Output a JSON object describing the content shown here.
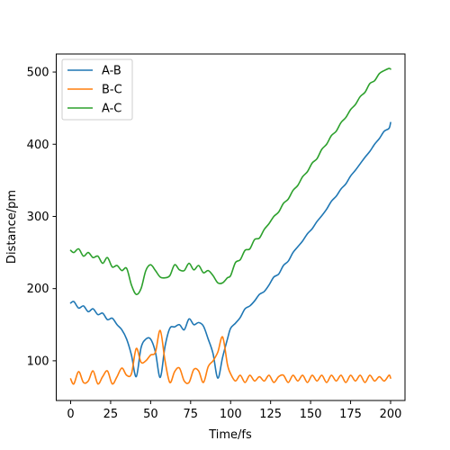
{
  "chart_data": {
    "type": "line",
    "xlabel": "Time/fs",
    "ylabel": "Distance/pm",
    "xlim": [
      -9,
      209
    ],
    "ylim": [
      45,
      525
    ],
    "xticks": [
      0,
      25,
      50,
      75,
      100,
      125,
      150,
      175,
      200
    ],
    "yticks": [
      100,
      200,
      300,
      400,
      500
    ],
    "legend_position": "top-left",
    "grid": false,
    "series": [
      {
        "name": "A-B",
        "color": "#1f77b4",
        "x": [
          0,
          2,
          5,
          8,
          11,
          14,
          17,
          20,
          23,
          26,
          29,
          32,
          35,
          38,
          41,
          44,
          47,
          50,
          53,
          56,
          59,
          62,
          65,
          68,
          71,
          74,
          77,
          80,
          83,
          86,
          89,
          92,
          95,
          98,
          100,
          103,
          106,
          109,
          112,
          115,
          118,
          121,
          124,
          127,
          130,
          133,
          136,
          139,
          142,
          145,
          148,
          151,
          154,
          157,
          160,
          163,
          166,
          169,
          172,
          175,
          178,
          181,
          184,
          187,
          190,
          193,
          196,
          199,
          200
        ],
        "y": [
          180,
          182,
          173,
          176,
          168,
          172,
          164,
          166,
          157,
          159,
          150,
          143,
          130,
          108,
          78,
          118,
          130,
          130,
          112,
          77,
          120,
          145,
          147,
          150,
          143,
          158,
          150,
          153,
          148,
          130,
          110,
          76,
          105,
          130,
          145,
          152,
          160,
          172,
          176,
          183,
          192,
          196,
          205,
          216,
          220,
          232,
          238,
          250,
          258,
          266,
          276,
          283,
          293,
          301,
          310,
          321,
          328,
          338,
          345,
          356,
          364,
          373,
          382,
          390,
          400,
          408,
          418,
          422,
          430
        ]
      },
      {
        "name": "B-C",
        "color": "#ff7f0e",
        "x": [
          0,
          2,
          5,
          8,
          11,
          14,
          17,
          20,
          23,
          26,
          29,
          32,
          35,
          38,
          41,
          44,
          47,
          50,
          53,
          56,
          59,
          62,
          65,
          68,
          71,
          74,
          77,
          80,
          83,
          86,
          89,
          92,
          95,
          98,
          100,
          103,
          106,
          109,
          112,
          115,
          118,
          121,
          124,
          127,
          130,
          133,
          136,
          139,
          142,
          145,
          148,
          151,
          154,
          157,
          160,
          163,
          166,
          169,
          172,
          175,
          178,
          181,
          184,
          187,
          190,
          193,
          196,
          199,
          200
        ],
        "y": [
          75,
          68,
          85,
          70,
          72,
          86,
          68,
          78,
          86,
          68,
          78,
          90,
          80,
          82,
          117,
          98,
          100,
          108,
          112,
          142,
          100,
          70,
          85,
          90,
          72,
          70,
          88,
          86,
          70,
          92,
          100,
          112,
          133,
          95,
          82,
          72,
          80,
          70,
          80,
          72,
          78,
          72,
          80,
          70,
          78,
          80,
          70,
          80,
          72,
          80,
          70,
          80,
          72,
          80,
          70,
          80,
          72,
          80,
          70,
          80,
          72,
          80,
          70,
          80,
          72,
          78,
          72,
          80,
          76
        ]
      },
      {
        "name": "A-C",
        "color": "#2ca02c",
        "x": [
          0,
          2,
          5,
          8,
          11,
          14,
          17,
          20,
          23,
          26,
          29,
          32,
          35,
          38,
          41,
          44,
          47,
          50,
          53,
          56,
          59,
          62,
          65,
          68,
          71,
          74,
          77,
          80,
          83,
          86,
          89,
          92,
          95,
          98,
          100,
          103,
          106,
          109,
          112,
          115,
          118,
          121,
          124,
          127,
          130,
          133,
          136,
          139,
          142,
          145,
          148,
          151,
          154,
          157,
          160,
          163,
          166,
          169,
          172,
          175,
          178,
          181,
          184,
          187,
          190,
          193,
          196,
          199,
          200
        ],
        "y": [
          253,
          250,
          255,
          245,
          250,
          243,
          245,
          235,
          243,
          230,
          232,
          225,
          228,
          205,
          192,
          200,
          225,
          233,
          225,
          216,
          215,
          218,
          233,
          226,
          225,
          235,
          226,
          232,
          222,
          225,
          218,
          208,
          208,
          215,
          218,
          236,
          240,
          253,
          255,
          268,
          270,
          282,
          290,
          300,
          306,
          318,
          324,
          336,
          343,
          355,
          362,
          374,
          380,
          393,
          400,
          412,
          418,
          430,
          437,
          448,
          455,
          466,
          472,
          484,
          488,
          498,
          502,
          505,
          504
        ]
      }
    ]
  }
}
